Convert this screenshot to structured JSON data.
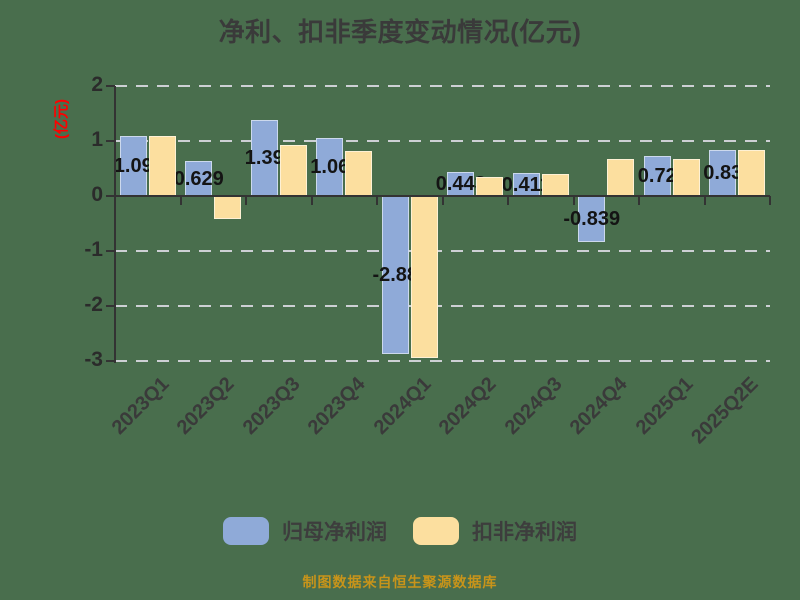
{
  "title": "净利、扣非季度变动情况(亿元)",
  "source_note": "制图数据来自恒生聚源数据库",
  "colors": {
    "background": "#496e4d",
    "series_blue": "#8faad8",
    "series_yellow": "#fcdf9f",
    "axis": "#333333",
    "gridline": "#cdd0d4",
    "title_text": "#3a3a3a",
    "tick_text": "#2b2b2b",
    "value_label_text": "#141414",
    "y_unit_label": "#fe0000",
    "source_note_text": "#c8941a"
  },
  "chart_data": {
    "type": "bar",
    "title": "净利、扣非季度变动情况(亿元)",
    "ylabel": "(亿元)",
    "xlabel": "",
    "categories": [
      "2023Q1",
      "2023Q2",
      "2023Q3",
      "2023Q4",
      "2024Q1",
      "2024Q2",
      "2024Q3",
      "2024Q4",
      "2025Q1",
      "2025Q2E"
    ],
    "series": [
      {
        "name": "归母净利润",
        "color": "#8faad8",
        "values": [
          1.09,
          0.629,
          1.39,
          1.06,
          -2.88,
          0.443,
          0.411,
          -0.839,
          0.72,
          0.83
        ],
        "data_labels": [
          "1.09",
          "0.629",
          "1.39",
          "1.06",
          "-2.88",
          "0.443",
          "0.411",
          "-0.839",
          "0.72",
          "0.83"
        ]
      },
      {
        "name": "扣非净利润",
        "color": "#fcdf9f",
        "values": [
          1.1,
          -0.42,
          0.92,
          0.82,
          -2.95,
          0.35,
          0.4,
          0.67,
          0.67,
          0.84
        ],
        "data_labels": []
      }
    ],
    "ylim": [
      -3,
      2
    ],
    "yticks": [
      2,
      1,
      0,
      -1,
      -2,
      -3
    ],
    "grid": "horizontal-dashed",
    "legend_position": "bottom"
  }
}
